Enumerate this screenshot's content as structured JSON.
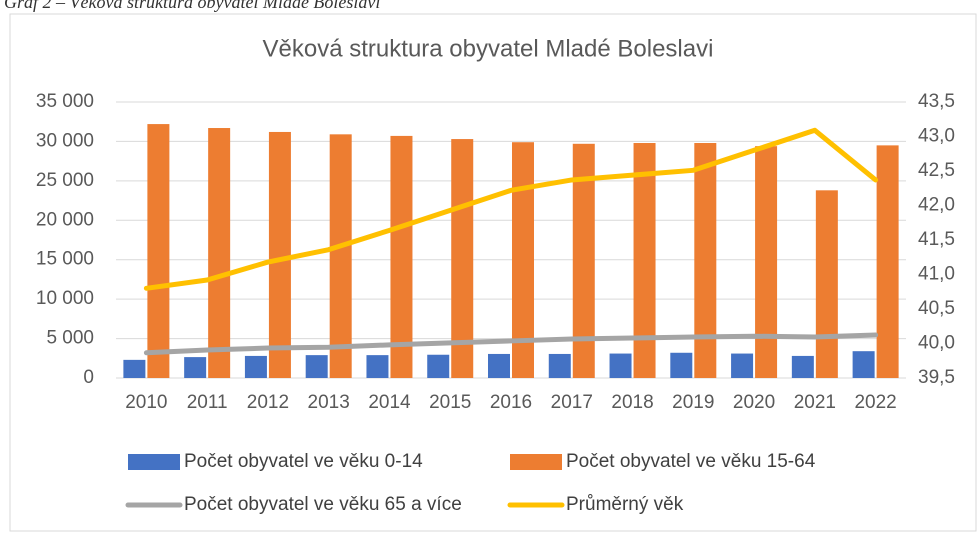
{
  "caption": "Graf 2 – Věková struktura obyvatel Mladé Boleslavi",
  "chart_data": {
    "type": "bar_line",
    "title": "Věková struktura obyvatel Mladé Boleslavi",
    "categories": [
      "2010",
      "2011",
      "2012",
      "2013",
      "2014",
      "2015",
      "2016",
      "2017",
      "2018",
      "2019",
      "2020",
      "2021",
      "2022"
    ],
    "series": [
      {
        "name": "Počet obyvatel ve věku 0-14",
        "type": "bar",
        "color": "#4472c4",
        "values": [
          2300,
          2650,
          2800,
          2900,
          2900,
          2950,
          3050,
          3050,
          3100,
          3200,
          3100,
          2800,
          3400
        ]
      },
      {
        "name": "Počet obyvatel ve věku 15-64",
        "type": "bar",
        "color": "#ed7d31",
        "values": [
          32200,
          31700,
          31200,
          30900,
          30700,
          30300,
          29900,
          29700,
          29800,
          29800,
          29400,
          23800,
          29500
        ]
      },
      {
        "name": "Počet obyvatel ve věku 65 a více",
        "type": "line",
        "color": "#a5a5a5",
        "values": [
          3200,
          3550,
          3800,
          3900,
          4200,
          4450,
          4700,
          4950,
          5070,
          5200,
          5300,
          5200,
          5450
        ]
      },
      {
        "name": "Průměrný věk",
        "type": "line",
        "axis": "y2",
        "color": "#ffc000",
        "values": [
          40.8,
          40.92,
          41.18,
          41.36,
          41.64,
          41.93,
          42.22,
          42.37,
          42.44,
          42.51,
          42.8,
          43.09,
          42.37
        ]
      }
    ],
    "ylim": [
      0,
      35000
    ],
    "yticks": [
      0,
      {
        "value": 5000,
        "label": "5 000"
      },
      {
        "value": 10000,
        "label": "10 000"
      },
      {
        "value": 15000,
        "label": "15 000"
      },
      {
        "value": 20000,
        "label": "20 000"
      },
      {
        "value": 25000,
        "label": "25 000"
      },
      {
        "value": 30000,
        "label": "30 000"
      },
      {
        "value": 35000,
        "label": "35 000"
      }
    ],
    "y2lim": [
      39.5,
      43.5
    ],
    "y2ticks": [
      {
        "value": 39.5,
        "label": "39,5"
      },
      {
        "value": 40,
        "label": "40,0"
      },
      {
        "value": 40.5,
        "label": "40,5"
      },
      {
        "value": 41,
        "label": "41,0"
      },
      {
        "value": 41.5,
        "label": "41,5"
      },
      {
        "value": 42,
        "label": "42,0"
      },
      {
        "value": 42.5,
        "label": "42,5"
      },
      {
        "value": 43,
        "label": "43,0"
      },
      {
        "value": 43.5,
        "label": "43,5"
      }
    ],
    "grid": true
  }
}
